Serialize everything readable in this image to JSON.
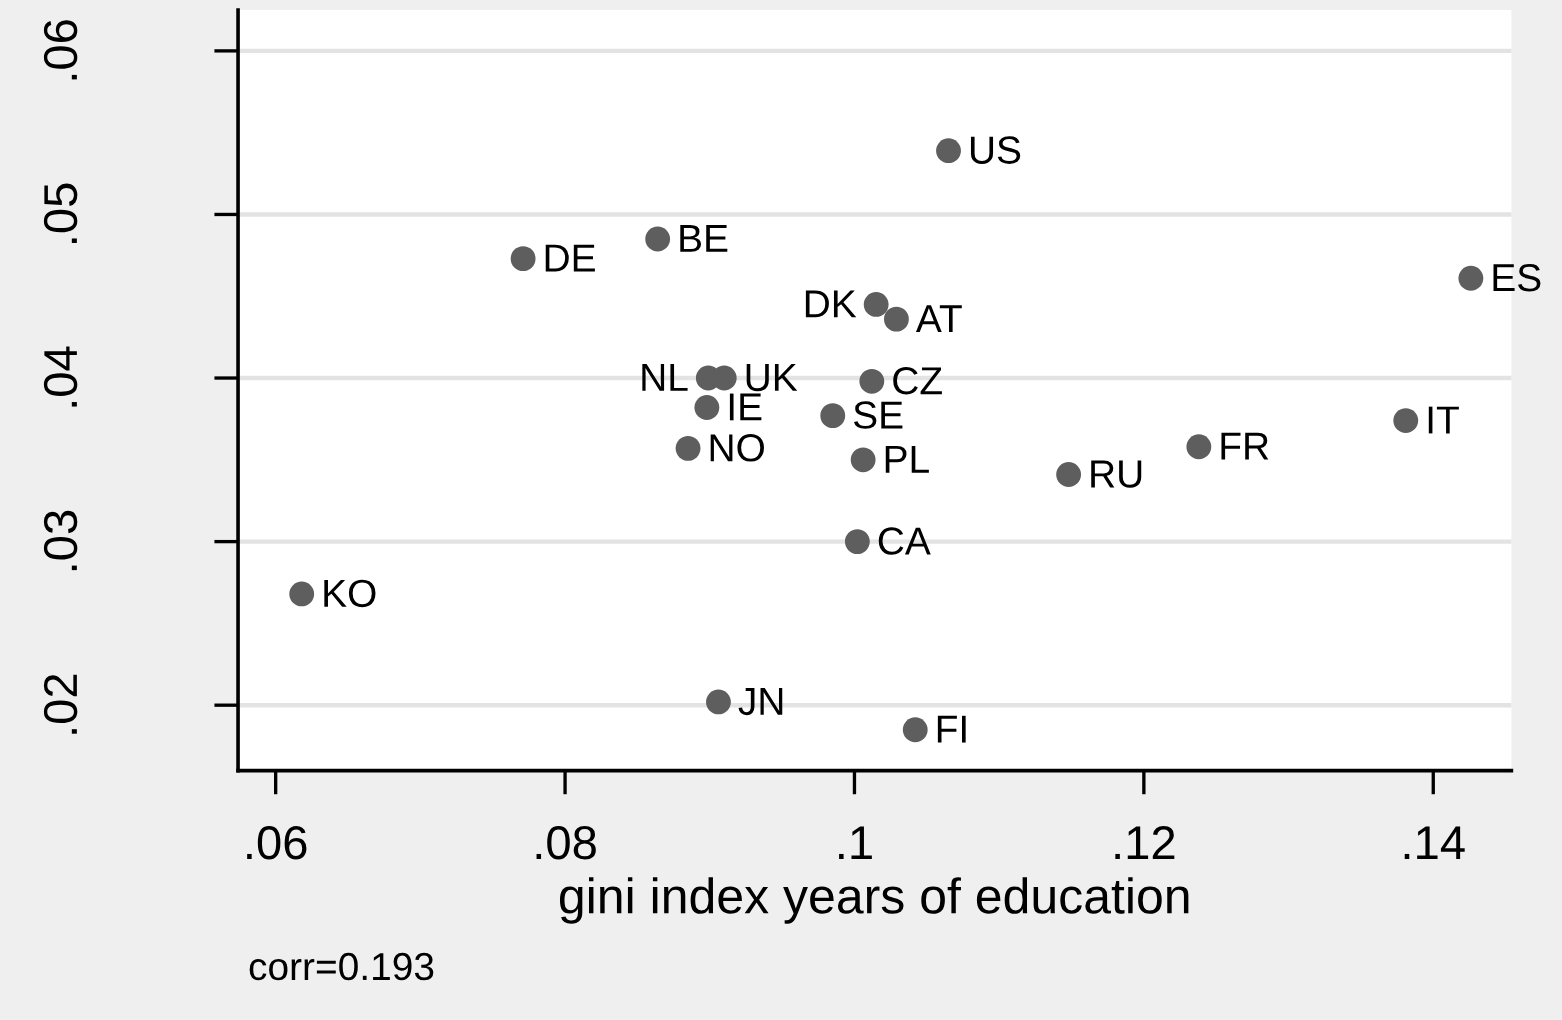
{
  "chart_data": {
    "type": "scatter",
    "xlabel": "gini index years of education",
    "color": "#5e5e5e",
    "marker": "circle",
    "x": [
      0.1065,
      0.0771,
      0.0864,
      0.1426,
      0.1015,
      0.1029,
      0.0899,
      0.091,
      0.1012,
      0.0898,
      0.0985,
      0.1381,
      0.0885,
      0.1006,
      0.1238,
      0.1148,
      0.1002,
      0.0618,
      0.0906,
      0.1042
    ],
    "values": [
      0.0539,
      0.0473,
      0.0485,
      0.0461,
      0.0445,
      0.0436,
      0.04,
      0.04,
      0.0398,
      0.0382,
      0.0377,
      0.0374,
      0.0357,
      0.035,
      0.0358,
      0.0341,
      0.03,
      0.0268,
      0.0202,
      0.0185
    ],
    "xlim": [
      0.0574,
      0.1454
    ],
    "ylim": [
      0.016,
      0.0625
    ],
    "xticks": [
      {
        "value": 0.06,
        "label": ".06"
      },
      {
        "value": 0.08,
        "label": ".08"
      },
      {
        "value": 0.1,
        "label": ".1"
      },
      {
        "value": 0.12,
        "label": ".12"
      },
      {
        "value": 0.14,
        "label": ".14"
      }
    ],
    "yticks": [
      {
        "value": 0.02,
        "label": ".02"
      },
      {
        "value": 0.03,
        "label": ".03"
      },
      {
        "value": 0.04,
        "label": ".04"
      },
      {
        "value": 0.05,
        "label": ".05"
      },
      {
        "value": 0.06,
        "label": ".06"
      }
    ],
    "grid": "y",
    "annotations": [
      {
        "text": "US",
        "x": 0.1065,
        "y": 0.0539
      },
      {
        "text": "DE",
        "x": 0.0771,
        "y": 0.0473
      },
      {
        "text": "BE",
        "x": 0.0864,
        "y": 0.0485
      },
      {
        "text": "ES",
        "x": 0.1426,
        "y": 0.0461
      },
      {
        "text": "DK",
        "x": 0.1015,
        "y": 0.0445
      },
      {
        "text": "AT",
        "x": 0.1029,
        "y": 0.0436
      },
      {
        "text": "NL",
        "x": 0.0899,
        "y": 0.04
      },
      {
        "text": "UK",
        "x": 0.091,
        "y": 0.04
      },
      {
        "text": "CZ",
        "x": 0.1012,
        "y": 0.0398
      },
      {
        "text": "IE",
        "x": 0.0898,
        "y": 0.0382
      },
      {
        "text": "SE",
        "x": 0.0985,
        "y": 0.0377
      },
      {
        "text": "IT",
        "x": 0.1381,
        "y": 0.0374
      },
      {
        "text": "NO",
        "x": 0.0885,
        "y": 0.0357
      },
      {
        "text": "PL",
        "x": 0.1006,
        "y": 0.035
      },
      {
        "text": "FR",
        "x": 0.1238,
        "y": 0.0358
      },
      {
        "text": "RU",
        "x": 0.1148,
        "y": 0.0341
      },
      {
        "text": "CA",
        "x": 0.1002,
        "y": 0.03
      },
      {
        "text": "KO",
        "x": 0.0618,
        "y": 0.0268
      },
      {
        "text": "JN",
        "x": 0.0906,
        "y": 0.0202
      },
      {
        "text": "FI",
        "x": 0.1042,
        "y": 0.0185
      },
      "corr=0.193"
    ]
  }
}
